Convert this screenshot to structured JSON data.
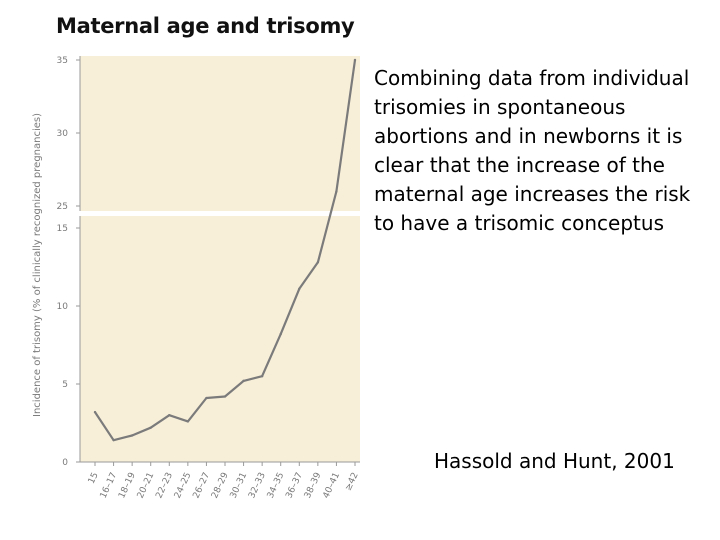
{
  "title": "Maternal age and trisomy",
  "description": "Combining data from individual trisomies in spontaneous abortions and in newborns it is clear that the increase of the maternal age increases the risk to have a trisomic conceptus",
  "citation": "Hassold and Hunt, 2001",
  "colors": {
    "plot_background": "#f8efd9",
    "line": "#7b7b7b",
    "axis": "#9a9a9a",
    "text": "#000000"
  },
  "chart_data": {
    "type": "line",
    "title": "",
    "ylabel": "Incidence of trisomy (% of clinically recognized pregnancies)",
    "xlabel": "",
    "categories": [
      "15",
      "16–17",
      "18–19",
      "20–21",
      "22–23",
      "24–25",
      "26–27",
      "28–29",
      "30–31",
      "32–33",
      "34–35",
      "36–37",
      "38–39",
      "40–41",
      "≥42"
    ],
    "series": [
      {
        "values": [
          3.2,
          1.4,
          1.7,
          2.2,
          3.0,
          2.6,
          4.1,
          4.2,
          5.2,
          5.5,
          8.2,
          11.1,
          12.8,
          26.0,
          35.0
        ]
      }
    ],
    "y_axis_break": {
      "from": 15,
      "to": 25
    },
    "yticks": [
      0,
      5,
      10,
      15,
      25,
      30,
      35
    ],
    "ylim": [
      0,
      35
    ],
    "grid": false,
    "legend": "none"
  }
}
